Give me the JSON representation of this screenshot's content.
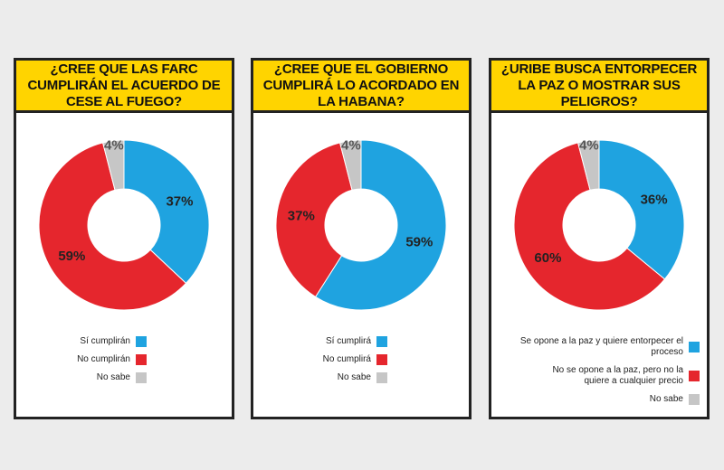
{
  "colors": {
    "blue": "#1fa3e0",
    "red": "#e5262d",
    "gray": "#c6c6c6"
  },
  "chart_data": [
    {
      "type": "pie",
      "title": "¿CREE QUE LAS FARC CUMPLIRÁN EL ACUERDO DE CESE AL FUEGO?",
      "slices": [
        {
          "label": "Sí cumplirán",
          "value": 37,
          "text": "37%",
          "color": "blue"
        },
        {
          "label": "No cumplirán",
          "value": 59,
          "text": "59%",
          "color": "red"
        },
        {
          "label": "No sabe",
          "value": 4,
          "text": "4%",
          "color": "gray"
        }
      ]
    },
    {
      "type": "pie",
      "title": "¿CREE QUE EL GOBIERNO CUMPLIRÁ LO ACORDADO EN LA HABANA?",
      "slices": [
        {
          "label": "Sí cumplirá",
          "value": 59,
          "text": "59%",
          "color": "blue"
        },
        {
          "label": "No cumplirá",
          "value": 37,
          "text": "37%",
          "color": "red"
        },
        {
          "label": "No sabe",
          "value": 4,
          "text": "4%",
          "color": "gray"
        }
      ]
    },
    {
      "type": "pie",
      "title": "¿URIBE BUSCA ENTORPECER LA PAZ O MOSTRAR SUS PELIGROS?",
      "slices": [
        {
          "label": "Se opone a la paz y quiere entorpecer el proceso",
          "value": 36,
          "text": "36%",
          "color": "blue"
        },
        {
          "label": "No se opone a la paz, pero no la quiere a cualquier precio",
          "value": 60,
          "text": "60%",
          "color": "red"
        },
        {
          "label": "No sabe",
          "value": 4,
          "text": "4%",
          "color": "gray"
        }
      ]
    }
  ]
}
